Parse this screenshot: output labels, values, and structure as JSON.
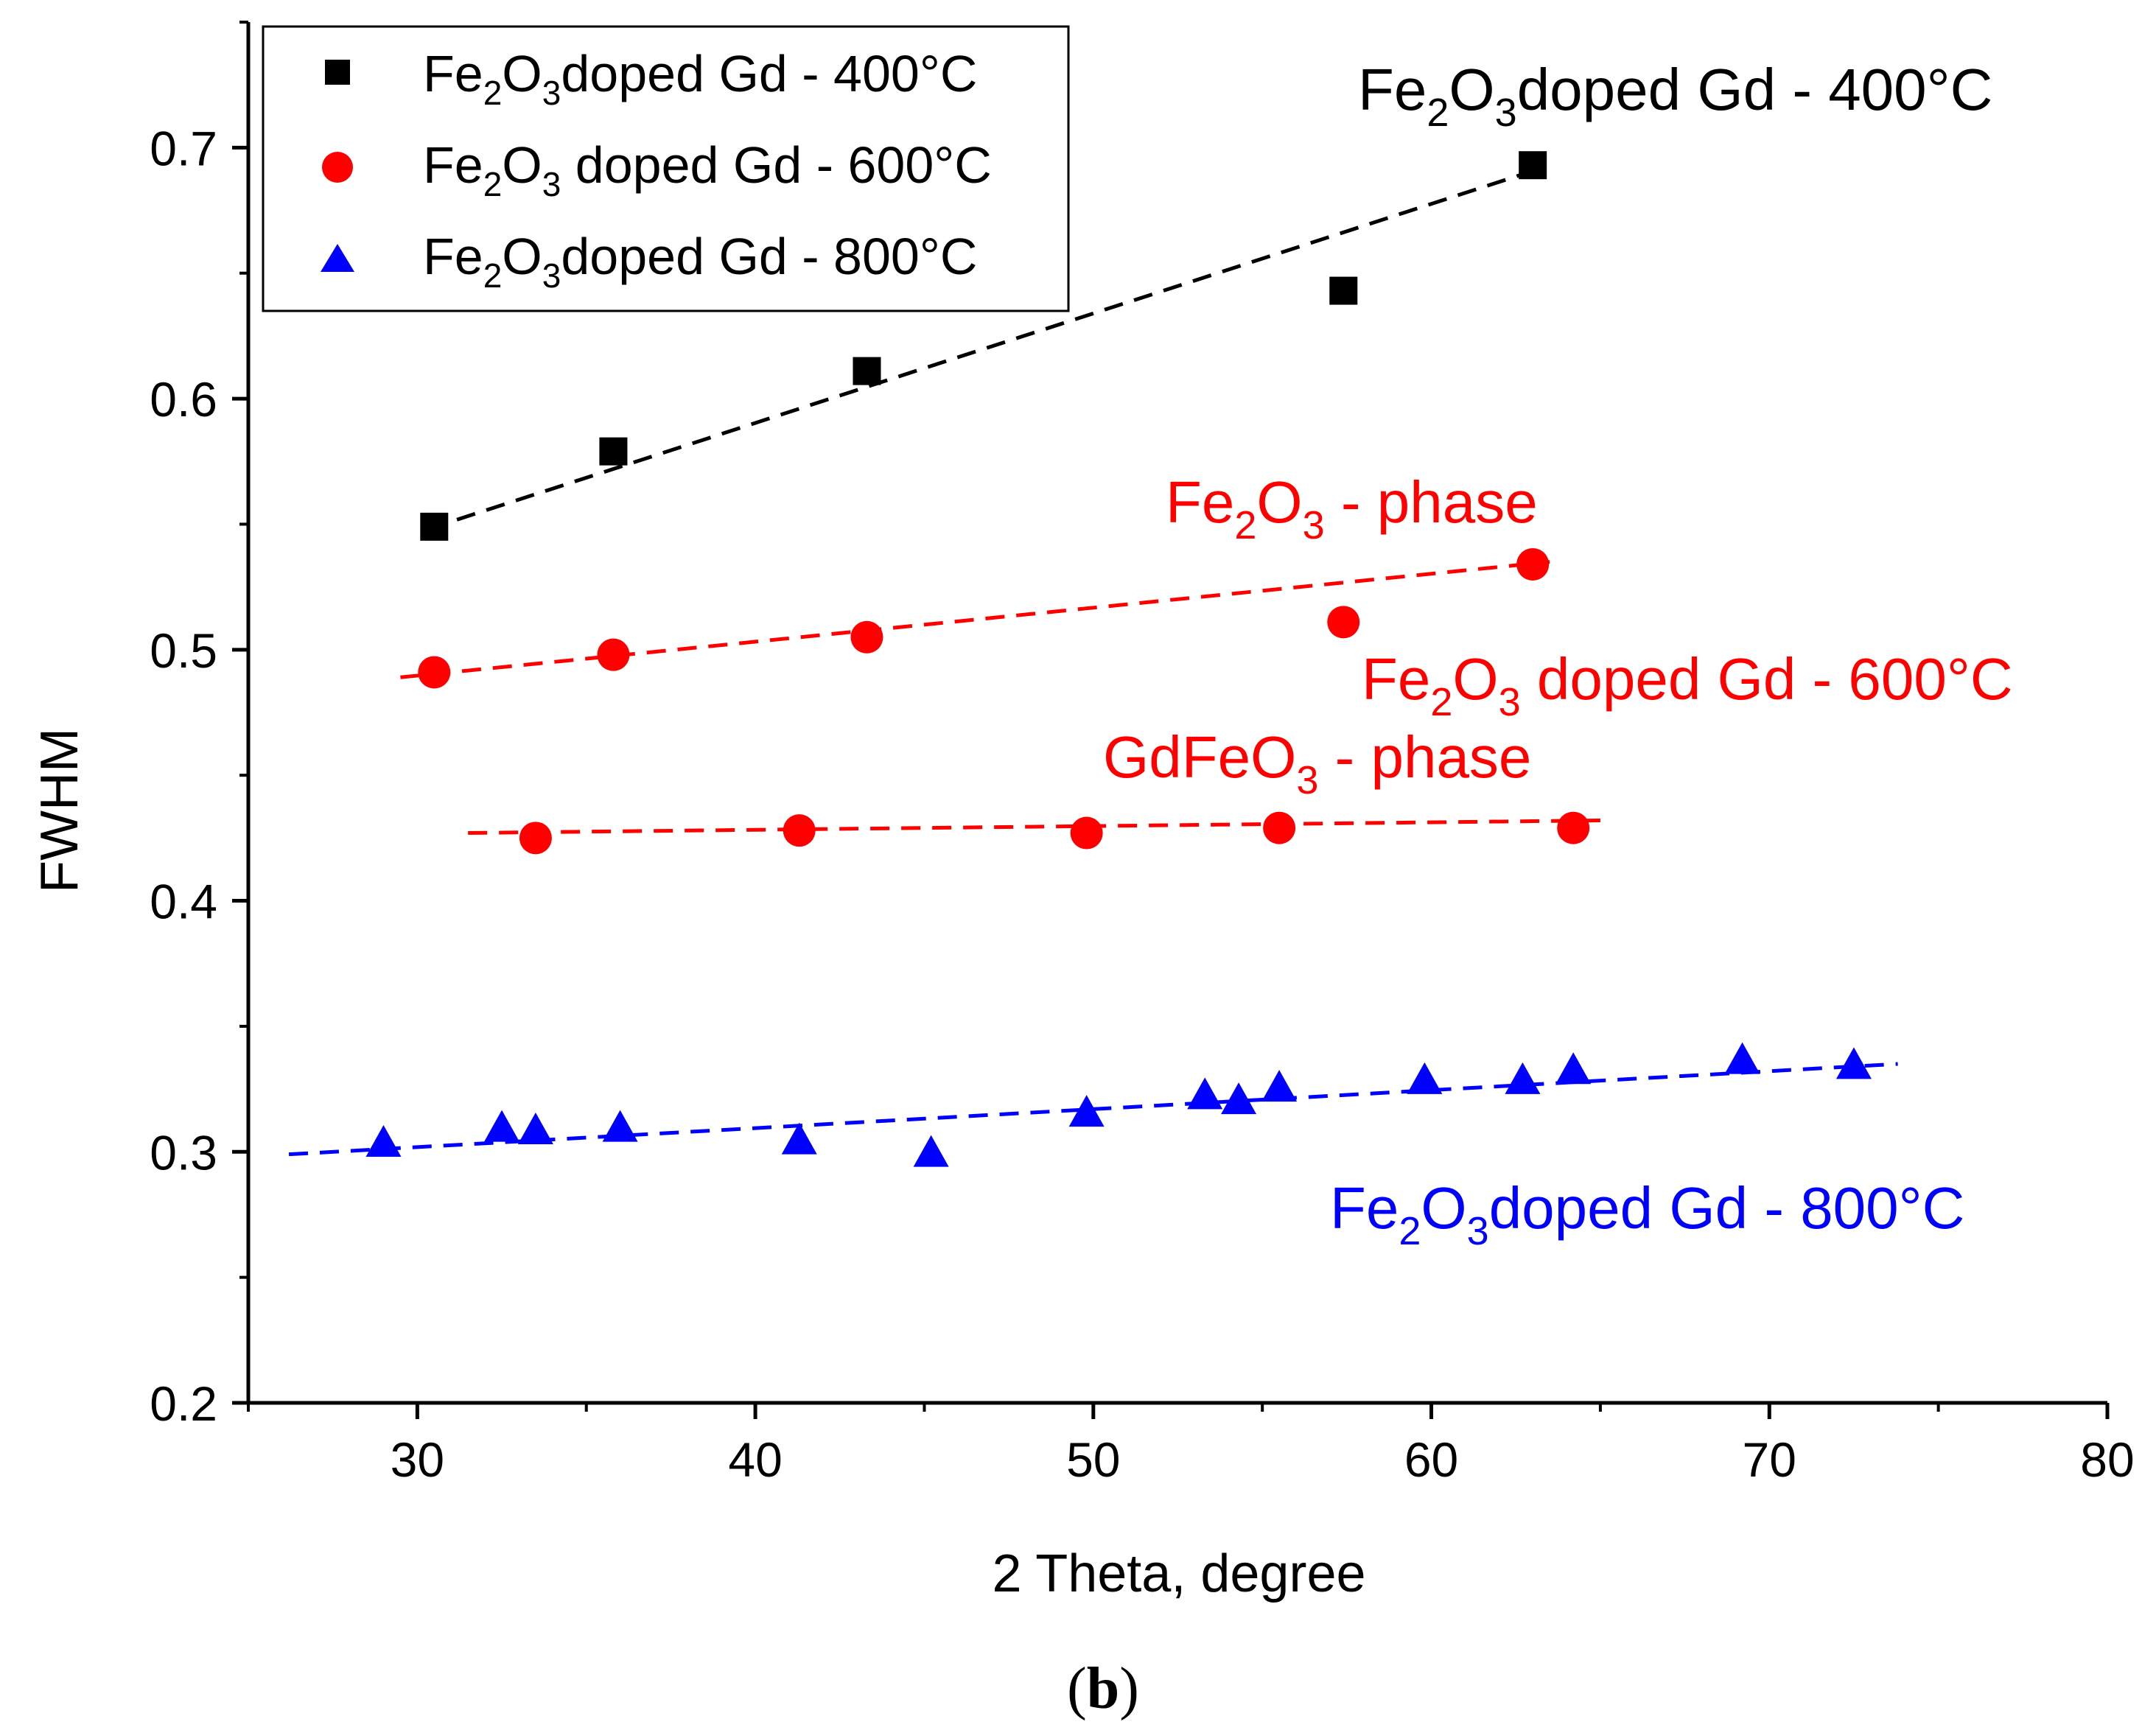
{
  "chart_data": {
    "type": "scatter",
    "title": "",
    "xlabel": "2 Theta, degree",
    "ylabel": "FWHM",
    "xlim": [
      25,
      80
    ],
    "ylim": [
      0.2,
      0.75
    ],
    "xticks": [
      30,
      40,
      50,
      60,
      70,
      80
    ],
    "xtick_labels": [
      "30",
      "40",
      "50",
      "60",
      "70",
      "80"
    ],
    "yticks": [
      0.2,
      0.3,
      0.4,
      0.5,
      0.6,
      0.7
    ],
    "ytick_labels": [
      "0.2",
      "0.3",
      "0.4",
      "0.5",
      "0.6",
      "0.7"
    ],
    "grid": false,
    "legend_position": "top-left",
    "caption": {
      "open": "(",
      "letter": "b",
      "close": ")"
    },
    "series": [
      {
        "name": "Fe2O3doped Gd - 400°C",
        "legend": {
          "pre": "Fe",
          "sub1": "2",
          "mid": "O",
          "sub2": "3",
          "post": "doped Gd - 400°C"
        },
        "color": "#000000",
        "marker": "square",
        "x": [
          30.5,
          35.8,
          43.3,
          57.4,
          63.0
        ],
        "y": [
          0.549,
          0.579,
          0.611,
          0.643,
          0.693
        ],
        "fits": [
          {
            "x": [
              30.3,
              63.3
            ],
            "y": [
              0.548,
              0.692
            ]
          }
        ]
      },
      {
        "name": "Fe2O3 doped Gd - 600°C",
        "legend": {
          "pre": "Fe",
          "sub1": "2",
          "mid": "O",
          "sub2": "3",
          "post": " doped Gd - 600°C"
        },
        "color": "#ff0000",
        "marker": "circle",
        "x": [
          30.5,
          35.8,
          43.3,
          57.4,
          63.0,
          33.5,
          41.3,
          49.8,
          55.5,
          64.2
        ],
        "y": [
          0.491,
          0.498,
          0.505,
          0.511,
          0.534,
          0.425,
          0.428,
          0.427,
          0.429,
          0.429
        ],
        "fits": [
          {
            "x": [
              29.5,
              63.5
            ],
            "y": [
              0.489,
              0.535
            ]
          },
          {
            "x": [
              31.5,
              65.0
            ],
            "y": [
              0.427,
              0.432
            ]
          }
        ]
      },
      {
        "name": "Fe2O3doped Gd - 800°C",
        "legend": {
          "pre": "Fe",
          "sub1": "2",
          "mid": "O",
          "sub2": "3",
          "post": "doped Gd - 800°C"
        },
        "color": "#0000ff",
        "marker": "triangle",
        "x": [
          29.0,
          32.5,
          33.5,
          36.0,
          41.3,
          45.2,
          49.8,
          53.3,
          54.3,
          55.5,
          59.8,
          62.7,
          64.2,
          69.2,
          72.5
        ],
        "y": [
          0.303,
          0.309,
          0.308,
          0.309,
          0.304,
          0.299,
          0.315,
          0.322,
          0.32,
          0.325,
          0.328,
          0.328,
          0.332,
          0.336,
          0.334
        ],
        "fits": [
          {
            "x": [
              26.2,
              73.8
            ],
            "y": [
              0.299,
              0.335
            ]
          }
        ]
      }
    ],
    "annotations": [
      {
        "id": "400",
        "color": "#000000",
        "pre": "Fe",
        "sub1": "2",
        "mid": "O",
        "sub2": "3",
        "post": "doped Gd - 400°C"
      },
      {
        "id": "fe2o3-phase",
        "color": "#ff0000",
        "pre": "Fe",
        "sub1": "2",
        "mid": "O",
        "sub2": "3",
        "post": " - phase"
      },
      {
        "id": "600",
        "color": "#ff0000",
        "pre": "Fe",
        "sub1": "2",
        "mid": "O",
        "sub2": "3",
        "post": " doped Gd - 600°C"
      },
      {
        "id": "gdfeo3-phase",
        "color": "#ff0000",
        "pre": "GdFeO",
        "sub1": "3",
        "mid": "",
        "sub2": "",
        "post": " - phase"
      },
      {
        "id": "800",
        "color": "#0000ff",
        "pre": "Fe",
        "sub1": "2",
        "mid": "O",
        "sub2": "3",
        "post": "doped Gd - 800°C"
      }
    ]
  }
}
